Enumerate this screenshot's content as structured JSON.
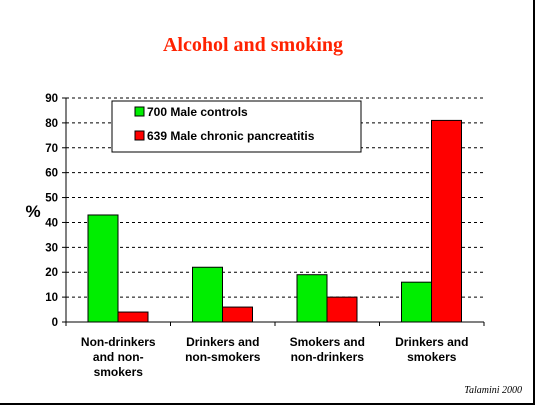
{
  "chart_data": {
    "type": "bar",
    "title": "Alcohol and smoking",
    "ylabel": "%",
    "xlabel": "",
    "ylim": [
      0,
      90
    ],
    "yticks": [
      0,
      10,
      20,
      30,
      40,
      50,
      60,
      70,
      80,
      90
    ],
    "grid": "horizontal dashed",
    "legend_position": "top-left",
    "categories": [
      [
        "Non-drinkers",
        "and non-",
        "smokers"
      ],
      [
        "Drinkers and",
        "non-smokers"
      ],
      [
        "Smokers and",
        "non-drinkers"
      ],
      [
        "Drinkers and",
        "smokers"
      ]
    ],
    "series": [
      {
        "name": "700 Male controls",
        "color": "#00ee00",
        "values": [
          43,
          22,
          19,
          16
        ]
      },
      {
        "name": "639 Male chronic pancreatitis",
        "color": "#ff0000",
        "values": [
          4,
          6,
          10,
          81
        ]
      }
    ]
  },
  "title_color": "#ff2200",
  "credit": "Talamini 2000"
}
